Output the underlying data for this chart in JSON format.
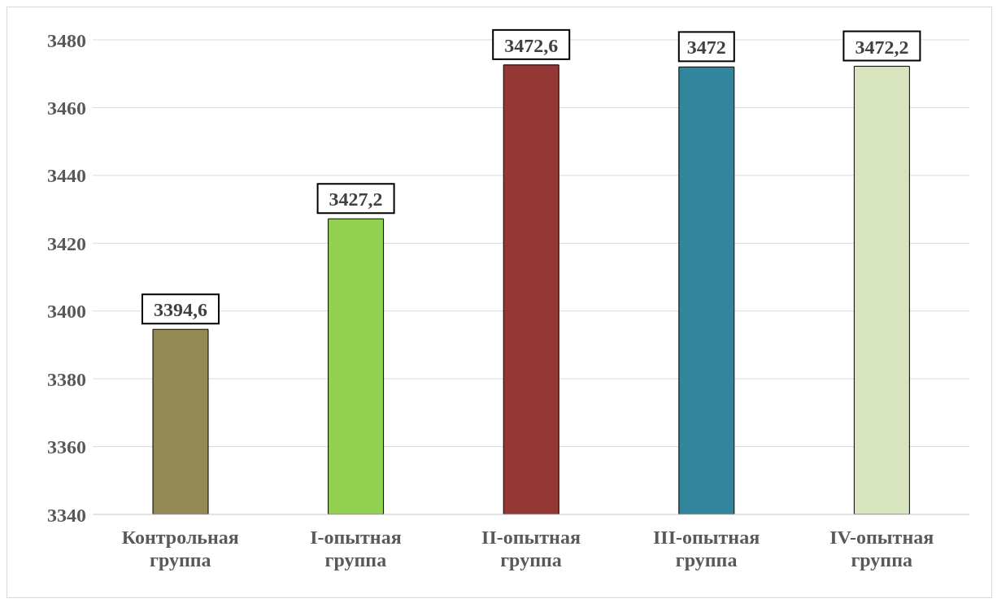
{
  "chart_data": {
    "type": "bar",
    "categories": [
      "Контрольная группа",
      "I-опытная группа",
      "II-опытная группа",
      "III-опытная группа",
      "IV-опытная группа"
    ],
    "values": [
      3394.6,
      3427.2,
      3472.6,
      3472,
      3472.2
    ],
    "value_labels": [
      "3394,6",
      "3427,2",
      "3472,6",
      "3472",
      "3472,2"
    ],
    "colors": [
      "#948a54",
      "#92d050",
      "#953735",
      "#31859c",
      "#d7e4bd"
    ],
    "ylim": [
      3340,
      3480
    ],
    "yticks": [
      3340,
      3360,
      3380,
      3400,
      3420,
      3440,
      3460,
      3480
    ],
    "grid": "y"
  }
}
